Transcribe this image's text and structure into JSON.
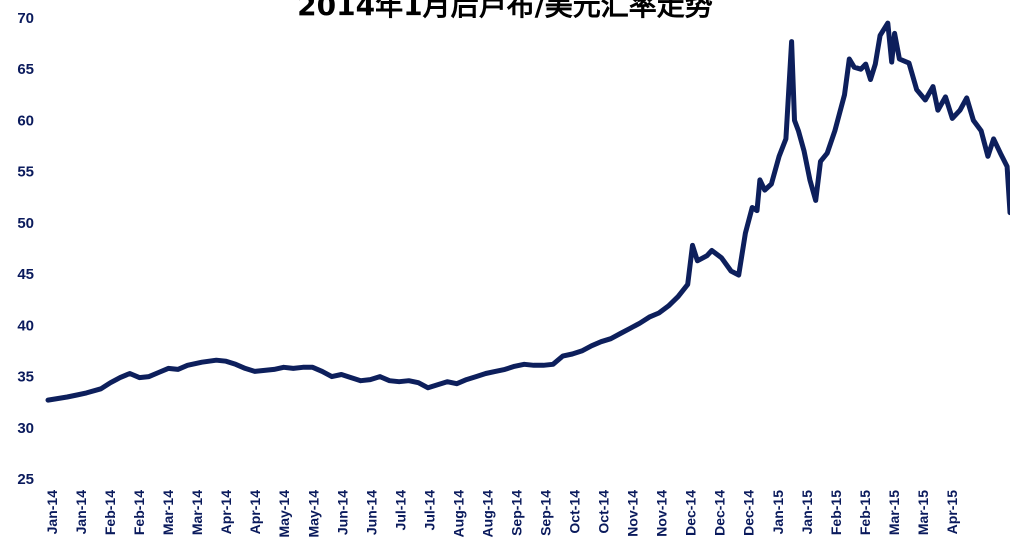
{
  "chart_data": {
    "type": "line",
    "title": "2014年1月后卢布/美元汇率走势",
    "xlabel": "",
    "ylabel": "",
    "ylim": [
      25,
      70
    ],
    "yticks": [
      25,
      30,
      35,
      40,
      45,
      50,
      55,
      60,
      65,
      70
    ],
    "xlim": [
      0,
      1
    ],
    "grid": false,
    "legend": "none",
    "line_color": "#0d1f5c",
    "axis_text_color": "#0a1a5c",
    "xtick_labels": [
      "Jan-14",
      "Jan-14",
      "Feb-14",
      "Feb-14",
      "Mar-14",
      "Mar-14",
      "Apr-14",
      "Apr-14",
      "May-14",
      "May-14",
      "Jun-14",
      "Jun-14",
      "Jul-14",
      "Jul-14",
      "Aug-14",
      "Aug-14",
      "Sep-14",
      "Sep-14",
      "Oct-14",
      "Oct-14",
      "Nov-14",
      "Nov-14",
      "Dec-14",
      "Dec-14",
      "Dec-14",
      "Jan-15",
      "Jan-15",
      "Feb-15",
      "Feb-15",
      "Mar-15",
      "Mar-15",
      "Apr-15"
    ],
    "series": [
      {
        "points": [
          [
            0.0,
            32.7
          ],
          [
            0.02,
            33.0
          ],
          [
            0.03,
            33.2
          ],
          [
            0.04,
            33.4
          ],
          [
            0.055,
            33.8
          ],
          [
            0.065,
            34.4
          ],
          [
            0.075,
            34.9
          ],
          [
            0.085,
            35.3
          ],
          [
            0.095,
            34.9
          ],
          [
            0.105,
            35.0
          ],
          [
            0.115,
            35.4
          ],
          [
            0.125,
            35.8
          ],
          [
            0.135,
            35.7
          ],
          [
            0.145,
            36.1
          ],
          [
            0.16,
            36.4
          ],
          [
            0.175,
            36.6
          ],
          [
            0.185,
            36.5
          ],
          [
            0.195,
            36.2
          ],
          [
            0.205,
            35.8
          ],
          [
            0.215,
            35.5
          ],
          [
            0.225,
            35.6
          ],
          [
            0.235,
            35.7
          ],
          [
            0.245,
            35.9
          ],
          [
            0.255,
            35.8
          ],
          [
            0.265,
            35.9
          ],
          [
            0.275,
            35.9
          ],
          [
            0.285,
            35.5
          ],
          [
            0.295,
            35.0
          ],
          [
            0.305,
            35.2
          ],
          [
            0.315,
            34.9
          ],
          [
            0.325,
            34.6
          ],
          [
            0.335,
            34.7
          ],
          [
            0.345,
            35.0
          ],
          [
            0.355,
            34.6
          ],
          [
            0.365,
            34.5
          ],
          [
            0.375,
            34.6
          ],
          [
            0.385,
            34.4
          ],
          [
            0.395,
            33.9
          ],
          [
            0.405,
            34.2
          ],
          [
            0.415,
            34.5
          ],
          [
            0.425,
            34.3
          ],
          [
            0.435,
            34.7
          ],
          [
            0.445,
            35.0
          ],
          [
            0.455,
            35.3
          ],
          [
            0.465,
            35.5
          ],
          [
            0.475,
            35.7
          ],
          [
            0.485,
            36.0
          ],
          [
            0.495,
            36.2
          ],
          [
            0.505,
            36.1
          ],
          [
            0.515,
            36.1
          ],
          [
            0.525,
            36.2
          ],
          [
            0.535,
            37.0
          ],
          [
            0.545,
            37.2
          ],
          [
            0.555,
            37.5
          ],
          [
            0.565,
            38.0
          ],
          [
            0.575,
            38.4
          ],
          [
            0.585,
            38.7
          ],
          [
            0.595,
            39.2
          ],
          [
            0.605,
            39.7
          ],
          [
            0.615,
            40.2
          ],
          [
            0.625,
            40.8
          ],
          [
            0.635,
            41.2
          ],
          [
            0.645,
            41.9
          ],
          [
            0.655,
            42.8
          ],
          [
            0.665,
            44.0
          ],
          [
            0.67,
            47.8
          ],
          [
            0.675,
            46.3
          ],
          [
            0.685,
            46.8
          ],
          [
            0.69,
            47.3
          ],
          [
            0.7,
            46.6
          ],
          [
            0.71,
            45.3
          ],
          [
            0.718,
            44.9
          ],
          [
            0.725,
            49.0
          ],
          [
            0.732,
            51.5
          ],
          [
            0.737,
            51.2
          ],
          [
            0.74,
            54.2
          ],
          [
            0.745,
            53.2
          ],
          [
            0.752,
            53.8
          ],
          [
            0.76,
            56.5
          ],
          [
            0.767,
            58.2
          ],
          [
            0.773,
            67.7
          ],
          [
            0.776,
            60.0
          ],
          [
            0.78,
            59.0
          ],
          [
            0.786,
            57.0
          ],
          [
            0.792,
            54.2
          ],
          [
            0.798,
            52.2
          ],
          [
            0.803,
            56.0
          ],
          [
            0.81,
            56.8
          ],
          [
            0.818,
            59.0
          ],
          [
            0.828,
            62.5
          ],
          [
            0.833,
            66.0
          ],
          [
            0.838,
            65.2
          ],
          [
            0.845,
            65.0
          ],
          [
            0.85,
            65.5
          ],
          [
            0.855,
            64.0
          ],
          [
            0.86,
            65.5
          ],
          [
            0.865,
            68.3
          ],
          [
            0.873,
            69.5
          ],
          [
            0.877,
            65.7
          ],
          [
            0.88,
            68.5
          ],
          [
            0.885,
            66.0
          ],
          [
            0.895,
            65.6
          ],
          [
            0.903,
            63.0
          ],
          [
            0.912,
            62.0
          ],
          [
            0.92,
            63.3
          ],
          [
            0.925,
            61.0
          ],
          [
            0.933,
            62.3
          ],
          [
            0.94,
            60.2
          ],
          [
            0.948,
            61.0
          ],
          [
            0.955,
            62.2
          ],
          [
            0.962,
            60.0
          ],
          [
            0.97,
            59.0
          ],
          [
            0.977,
            56.5
          ],
          [
            0.983,
            58.2
          ],
          [
            0.99,
            56.8
          ],
          [
            0.997,
            55.5
          ],
          [
            1.0,
            51.0
          ]
        ]
      }
    ]
  }
}
